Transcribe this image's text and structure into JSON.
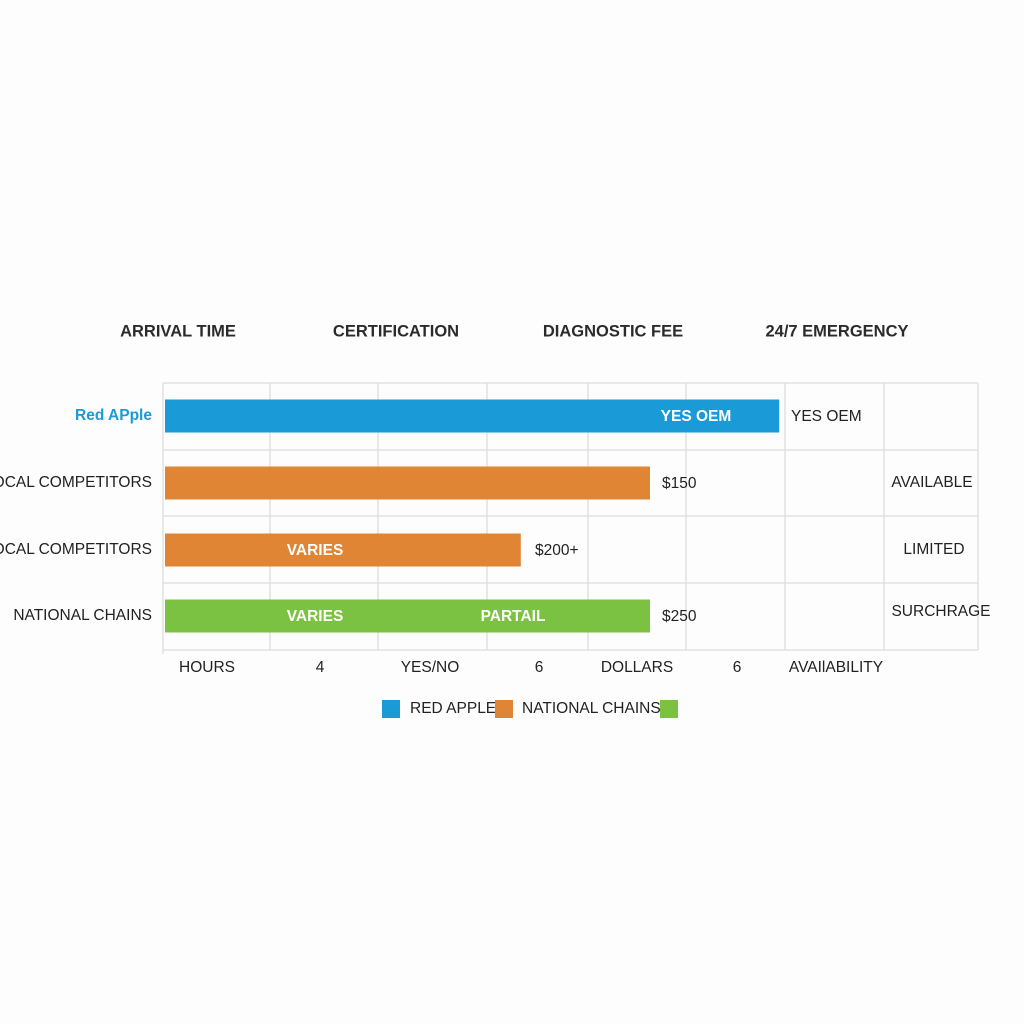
{
  "chart_data": {
    "type": "bar",
    "orientation": "horizontal",
    "columns": [
      "ARRIVAL TIME",
      "CERTIFICATION",
      "DIAGNOSTIC FEE",
      "24/7 EMERGENCY"
    ],
    "rows": [
      {
        "category": "Red APple",
        "series": "RED APPLE",
        "value": 6.2,
        "bar_labels": [
          "YES OEM"
        ],
        "end_label": "YES OEM",
        "right_label": ""
      },
      {
        "category": "LOCAL COMPETITORS",
        "series": "NATIONAL CHAINS",
        "value": 4.9,
        "bar_labels": [],
        "end_label": "$150",
        "right_label": "AVAILABLE"
      },
      {
        "category": "LOCAL COMPETITORS",
        "series": "NATIONAL CHAINS",
        "value": 3.6,
        "bar_labels": [
          "VARIES"
        ],
        "end_label": "$200+",
        "right_label": "LIMITED"
      },
      {
        "category": "NATIONAL CHAINS",
        "series": "",
        "value": 4.9,
        "bar_labels": [
          "VARIES",
          "PARTAIL"
        ],
        "end_label": "$250",
        "right_label": "SURCHRAGE"
      }
    ],
    "x_tick_labels": [
      "HOURS",
      "4",
      "YES/NO",
      "6",
      "DOLLARS",
      "6",
      "AVAIlABILITY"
    ],
    "xlim": [
      0,
      8.2
    ],
    "grid": true,
    "legend": [
      {
        "label": "RED APPLE",
        "color": "#1a9ad6"
      },
      {
        "label": "NATIONAL CHAINS",
        "color": "#e08533"
      },
      {
        "label": "",
        "color": "#7cc242"
      }
    ],
    "legend_position": "bottom-center",
    "colors": {
      "blue": "#1a9ad6",
      "orange": "#e08533",
      "green": "#7cc242",
      "highlight_text": "#1a9ad6"
    }
  }
}
